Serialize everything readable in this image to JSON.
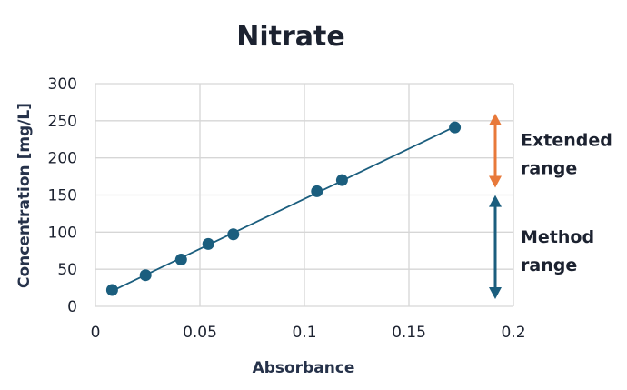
{
  "chart_data": {
    "type": "scatter",
    "title": "Nitrate",
    "xlabel": "Absorbance",
    "ylabel": "Concentration [mg/L]",
    "xlim": [
      0,
      0.2
    ],
    "ylim": [
      0,
      300
    ],
    "xticks": [
      "0",
      "0.05",
      "0.1",
      "0.15",
      "0.2"
    ],
    "yticks": [
      "0",
      "50",
      "100",
      "150",
      "200",
      "250",
      "300"
    ],
    "grid": true,
    "series": [
      {
        "x": [
          0.008,
          0.024,
          0.041,
          0.054,
          0.066,
          0.106,
          0.118,
          0.172
        ],
        "y": [
          22,
          42,
          63,
          84,
          97,
          155,
          170,
          241
        ],
        "color": "#1b5e7e",
        "fit_line": true
      }
    ],
    "annotations": [
      {
        "label_lines": [
          "Extended",
          "range"
        ],
        "y_range": [
          150,
          250
        ],
        "color": "#e8793a"
      },
      {
        "label_lines": [
          "Method",
          "range"
        ],
        "y_range": [
          0,
          140
        ],
        "color": "#1b5e7e"
      }
    ]
  }
}
